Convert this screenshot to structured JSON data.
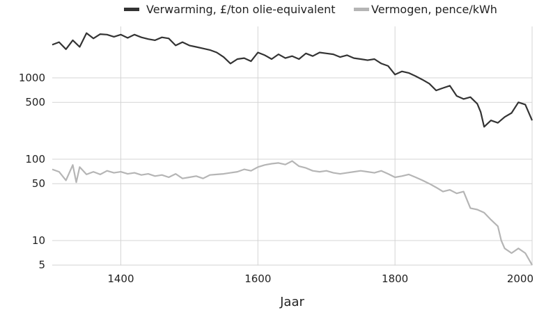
{
  "chart_data": {
    "type": "line",
    "title": "",
    "xlabel": "Jaar",
    "ylabel": "",
    "yscale": "log",
    "xlim": [
      1300,
      2000
    ],
    "ylim": [
      5,
      5000
    ],
    "x_ticks": [
      1400,
      1600,
      1800,
      2000
    ],
    "x_tick_labels": [
      "1400",
      "1600",
      "1800",
      "2000"
    ],
    "y_ticks": [
      5,
      10,
      50,
      100,
      500,
      1000
    ],
    "y_tick_labels": [
      "5",
      "10",
      "50",
      "100",
      "500",
      "1000"
    ],
    "grid": true,
    "legend_position": "top",
    "series": [
      {
        "name": "Verwarming, £/ton olie-equivalent",
        "color": "#333333",
        "points": [
          [
            1300,
            2550
          ],
          [
            1310,
            2750
          ],
          [
            1320,
            2250
          ],
          [
            1330,
            2900
          ],
          [
            1340,
            2400
          ],
          [
            1350,
            3550
          ],
          [
            1360,
            3050
          ],
          [
            1370,
            3450
          ],
          [
            1380,
            3400
          ],
          [
            1390,
            3200
          ],
          [
            1400,
            3400
          ],
          [
            1410,
            3100
          ],
          [
            1420,
            3400
          ],
          [
            1430,
            3150
          ],
          [
            1440,
            3000
          ],
          [
            1450,
            2900
          ],
          [
            1460,
            3150
          ],
          [
            1470,
            3050
          ],
          [
            1480,
            2500
          ],
          [
            1490,
            2750
          ],
          [
            1500,
            2500
          ],
          [
            1510,
            2400
          ],
          [
            1520,
            2300
          ],
          [
            1530,
            2200
          ],
          [
            1540,
            2050
          ],
          [
            1550,
            1800
          ],
          [
            1560,
            1500
          ],
          [
            1570,
            1700
          ],
          [
            1580,
            1750
          ],
          [
            1590,
            1600
          ],
          [
            1600,
            2050
          ],
          [
            1610,
            1900
          ],
          [
            1620,
            1700
          ],
          [
            1630,
            1950
          ],
          [
            1640,
            1750
          ],
          [
            1650,
            1850
          ],
          [
            1660,
            1700
          ],
          [
            1670,
            2000
          ],
          [
            1680,
            1850
          ],
          [
            1690,
            2050
          ],
          [
            1700,
            2000
          ],
          [
            1710,
            1950
          ],
          [
            1720,
            1800
          ],
          [
            1730,
            1900
          ],
          [
            1740,
            1750
          ],
          [
            1750,
            1700
          ],
          [
            1760,
            1650
          ],
          [
            1770,
            1700
          ],
          [
            1780,
            1500
          ],
          [
            1790,
            1400
          ],
          [
            1800,
            1100
          ],
          [
            1810,
            1200
          ],
          [
            1820,
            1150
          ],
          [
            1830,
            1050
          ],
          [
            1840,
            950
          ],
          [
            1850,
            850
          ],
          [
            1860,
            700
          ],
          [
            1870,
            750
          ],
          [
            1880,
            800
          ],
          [
            1890,
            600
          ],
          [
            1900,
            550
          ],
          [
            1910,
            580
          ],
          [
            1920,
            480
          ],
          [
            1925,
            380
          ],
          [
            1930,
            250
          ],
          [
            1940,
            300
          ],
          [
            1950,
            280
          ],
          [
            1960,
            330
          ],
          [
            1970,
            370
          ],
          [
            1980,
            500
          ],
          [
            1990,
            470
          ],
          [
            2000,
            300
          ]
        ]
      },
      {
        "name": "Vermogen, pence/kWh",
        "color": "#b5b5b5",
        "points": [
          [
            1300,
            75
          ],
          [
            1310,
            70
          ],
          [
            1320,
            55
          ],
          [
            1330,
            85
          ],
          [
            1335,
            52
          ],
          [
            1340,
            80
          ],
          [
            1350,
            65
          ],
          [
            1360,
            70
          ],
          [
            1370,
            65
          ],
          [
            1380,
            72
          ],
          [
            1390,
            68
          ],
          [
            1400,
            70
          ],
          [
            1410,
            66
          ],
          [
            1420,
            68
          ],
          [
            1430,
            64
          ],
          [
            1440,
            66
          ],
          [
            1450,
            62
          ],
          [
            1460,
            64
          ],
          [
            1470,
            60
          ],
          [
            1480,
            66
          ],
          [
            1490,
            58
          ],
          [
            1500,
            60
          ],
          [
            1510,
            62
          ],
          [
            1520,
            58
          ],
          [
            1530,
            64
          ],
          [
            1540,
            65
          ],
          [
            1550,
            66
          ],
          [
            1560,
            68
          ],
          [
            1570,
            70
          ],
          [
            1580,
            75
          ],
          [
            1590,
            72
          ],
          [
            1600,
            80
          ],
          [
            1610,
            85
          ],
          [
            1620,
            88
          ],
          [
            1630,
            90
          ],
          [
            1640,
            86
          ],
          [
            1650,
            95
          ],
          [
            1660,
            82
          ],
          [
            1670,
            78
          ],
          [
            1680,
            72
          ],
          [
            1690,
            70
          ],
          [
            1700,
            72
          ],
          [
            1710,
            68
          ],
          [
            1720,
            66
          ],
          [
            1730,
            68
          ],
          [
            1740,
            70
          ],
          [
            1750,
            72
          ],
          [
            1760,
            70
          ],
          [
            1770,
            68
          ],
          [
            1780,
            72
          ],
          [
            1790,
            66
          ],
          [
            1800,
            60
          ],
          [
            1810,
            62
          ],
          [
            1820,
            65
          ],
          [
            1830,
            60
          ],
          [
            1840,
            55
          ],
          [
            1850,
            50
          ],
          [
            1860,
            45
          ],
          [
            1870,
            40
          ],
          [
            1880,
            42
          ],
          [
            1890,
            38
          ],
          [
            1900,
            40
          ],
          [
            1910,
            25
          ],
          [
            1920,
            24
          ],
          [
            1930,
            22
          ],
          [
            1940,
            18
          ],
          [
            1950,
            15
          ],
          [
            1955,
            10
          ],
          [
            1960,
            8
          ],
          [
            1970,
            7
          ],
          [
            1980,
            8
          ],
          [
            1990,
            7
          ],
          [
            2000,
            5
          ]
        ]
      }
    ]
  }
}
